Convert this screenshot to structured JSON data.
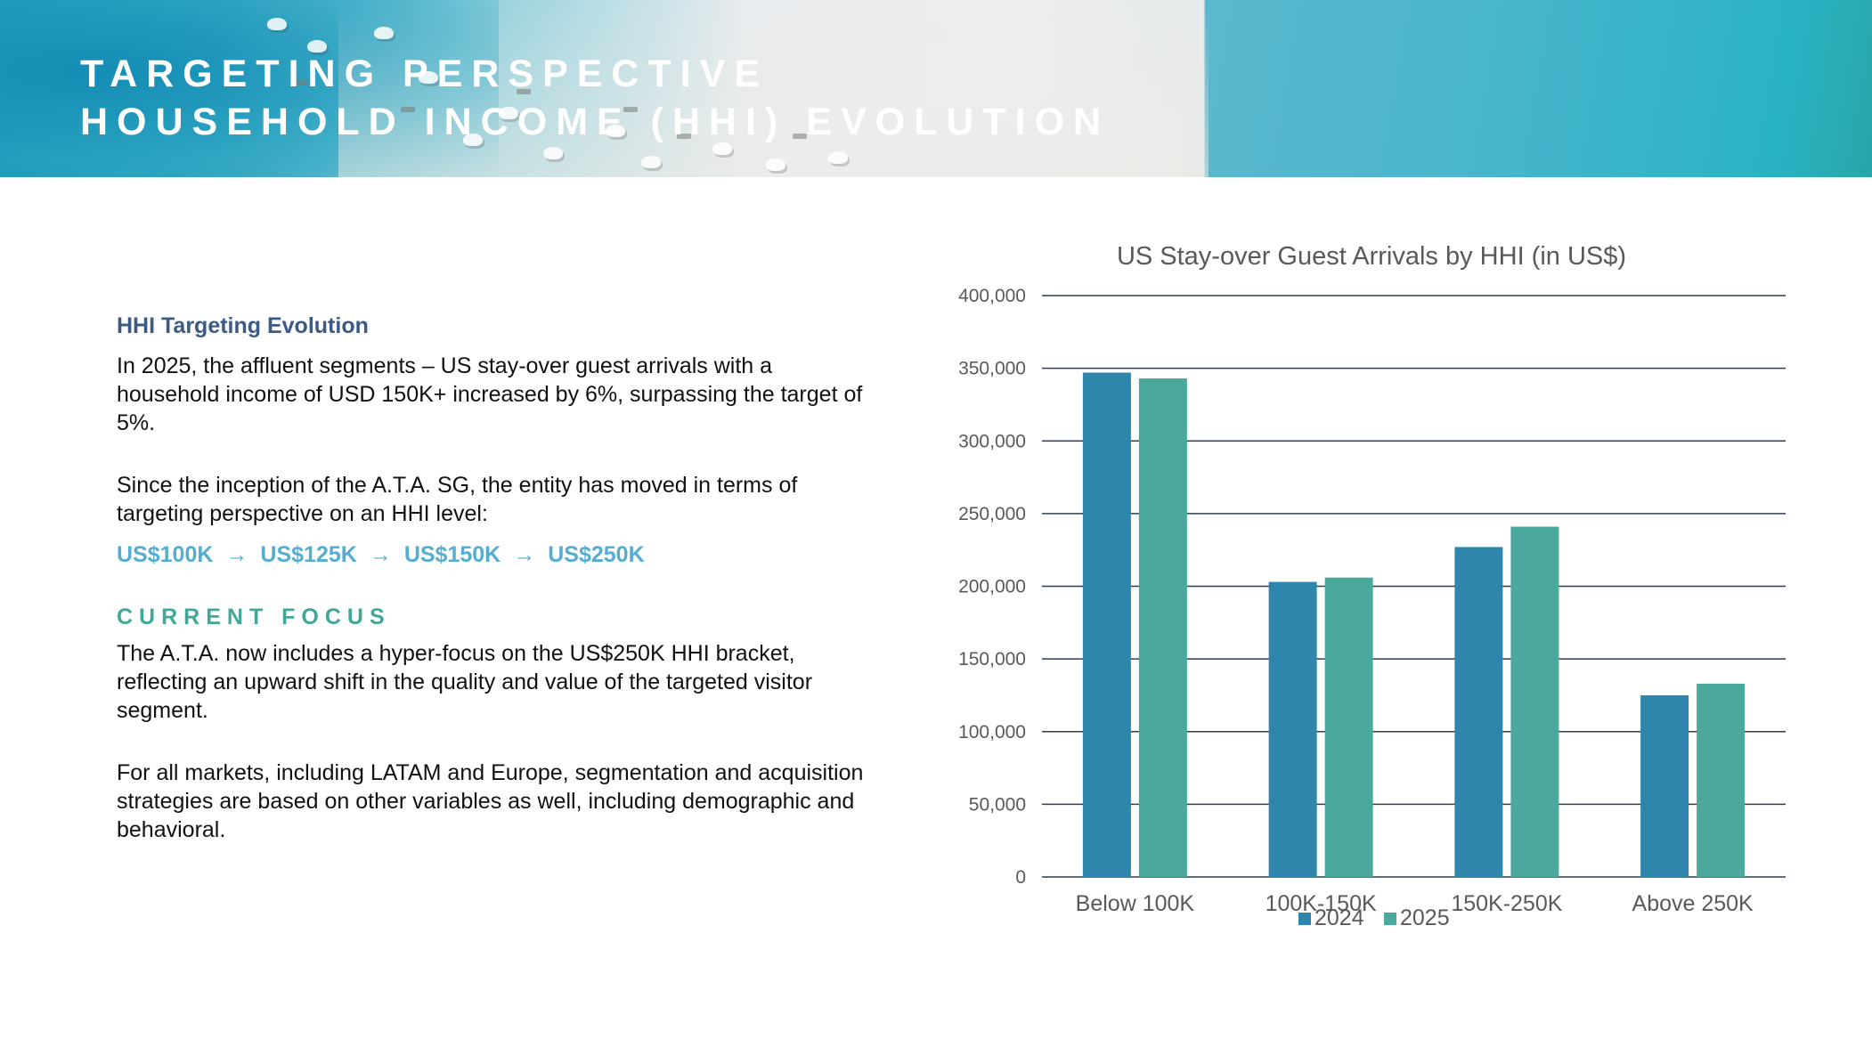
{
  "header": {
    "title_line1": "TARGETING PERSPECTIVE",
    "title_line2": "HOUSEHOLD INCOME (HHI) EVOLUTION"
  },
  "content": {
    "section_title": "HHI Targeting Evolution",
    "para1": "In 2025, the affluent segments – US stay-over guest arrivals with a household income of USD 150K+ increased by 6%, surpassing the target of 5%.",
    "para2": "Since the inception of the A.T.A. SG, the entity has moved in terms of targeting perspective on an HHI level:",
    "evolution_steps": [
      "US$100K",
      "US$125K",
      "US$150K",
      "US$250K"
    ],
    "arrow": "→",
    "focus_title": "CURRENT FOCUS",
    "para3": "The A.T.A. now includes a hyper-focus on the US$250K HHI bracket, reflecting an upward shift in the quality and value of the targeted visitor segment.",
    "para4": "For all markets, including LATAM and Europe, segmentation and acquisition strategies are based on other variables as well, including demographic and behavioral."
  },
  "colors": {
    "series_2024": "#2e86ad",
    "series_2025": "#4aa99c",
    "gridline": "#2f3d55",
    "section_title": "#3c5a86",
    "evolution_text": "#55aed1",
    "focus_title": "#41a898"
  },
  "chart_data": {
    "type": "bar",
    "title": "US Stay-over Guest Arrivals by HHI (in US$)",
    "categories": [
      "Below 100K",
      "100K-150K",
      "150K-250K",
      "Above 250K"
    ],
    "series": [
      {
        "name": "2024",
        "values": [
          347000,
          203000,
          227000,
          125000
        ]
      },
      {
        "name": "2025",
        "values": [
          343000,
          206000,
          241000,
          133000
        ]
      }
    ],
    "ylim": [
      0,
      400000
    ],
    "yticks": [
      0,
      50000,
      100000,
      150000,
      200000,
      250000,
      300000,
      350000,
      400000
    ],
    "ytick_labels": [
      "0",
      "50,000",
      "100,000",
      "150,000",
      "200,000",
      "250,000",
      "300,000",
      "350,000",
      "400,000"
    ],
    "grid": true,
    "legend": "bottom"
  }
}
